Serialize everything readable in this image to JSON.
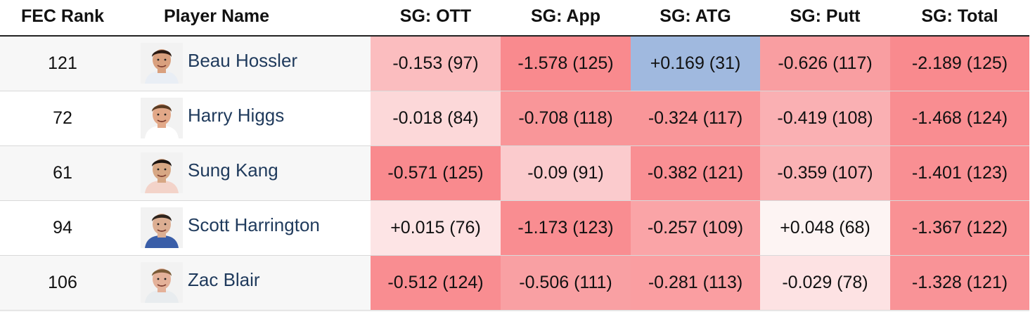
{
  "headers": {
    "rank": "FEC Rank",
    "player": "Player Name",
    "ott": "SG: OTT",
    "app": "SG: App",
    "atg": "SG: ATG",
    "putt": "SG: Putt",
    "total": "SG: Total"
  },
  "rows": [
    {
      "rank": "121",
      "name": "Beau Hossler",
      "avatar": "player-headshot-icon",
      "ott": {
        "text": "-0.153 (97)",
        "color": "#fbbdbf"
      },
      "app": {
        "text": "-1.578 (125)",
        "color": "#f98a8e"
      },
      "atg": {
        "text": "+0.169 (31)",
        "color": "#a0b9df"
      },
      "putt": {
        "text": "-0.626 (117)",
        "color": "#f99ea1"
      },
      "total": {
        "text": "-2.189 (125)",
        "color": "#f98a8e"
      }
    },
    {
      "rank": "72",
      "name": "Harry Higgs",
      "avatar": "player-headshot-icon",
      "ott": {
        "text": "-0.018 (84)",
        "color": "#fcd8d9"
      },
      "app": {
        "text": "-0.708 (118)",
        "color": "#f99699"
      },
      "atg": {
        "text": "-0.324 (117)",
        "color": "#f99699"
      },
      "putt": {
        "text": "-0.419 (108)",
        "color": "#fab0b3"
      },
      "total": {
        "text": "-1.468 (124)",
        "color": "#f98d91"
      }
    },
    {
      "rank": "61",
      "name": "Sung Kang",
      "avatar": "player-headshot-icon",
      "ott": {
        "text": "-0.571 (125)",
        "color": "#f98a8e"
      },
      "app": {
        "text": "-0.09 (91)",
        "color": "#fbcbcd"
      },
      "atg": {
        "text": "-0.382 (121)",
        "color": "#f98f93"
      },
      "putt": {
        "text": "-0.359 (107)",
        "color": "#fab2b4"
      },
      "total": {
        "text": "-1.401 (123)",
        "color": "#f98f93"
      }
    },
    {
      "rank": "94",
      "name": "Scott Harrington",
      "avatar": "player-headshot-icon",
      "ott": {
        "text": "+0.015 (76)",
        "color": "#fde4e5"
      },
      "app": {
        "text": "-1.173 (123)",
        "color": "#f98d91"
      },
      "atg": {
        "text": "-0.257 (109)",
        "color": "#faa4a7"
      },
      "putt": {
        "text": "+0.048 (68)",
        "color": "#fdf4f3"
      },
      "total": {
        "text": "-1.367 (122)",
        "color": "#f99194"
      }
    },
    {
      "rank": "106",
      "name": "Zac Blair",
      "avatar": "player-headshot-icon",
      "ott": {
        "text": "-0.512 (124)",
        "color": "#f98d91"
      },
      "app": {
        "text": "-0.506 (111)",
        "color": "#f9a0a3"
      },
      "atg": {
        "text": "-0.281 (113)",
        "color": "#fa9ea1"
      },
      "putt": {
        "text": "-0.029 (78)",
        "color": "#fde2e3"
      },
      "total": {
        "text": "-1.328 (121)",
        "color": "#f99397"
      }
    }
  ],
  "colors": {
    "name_link": "#1f3a5c",
    "stripe": "#f7f7f7",
    "header_rule": "#222222"
  }
}
